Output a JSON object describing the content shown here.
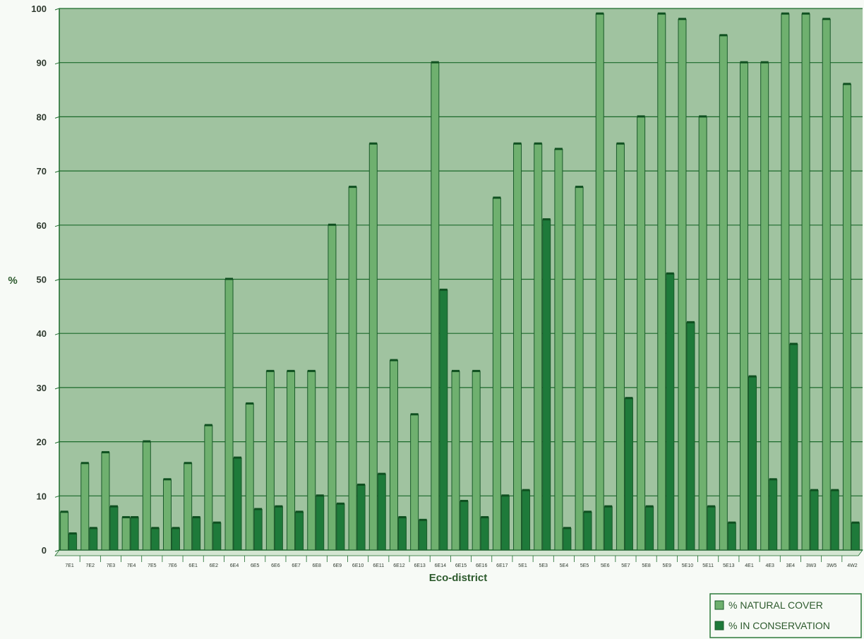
{
  "chart_data": {
    "type": "bar",
    "title": "",
    "xlabel": "Eco-district",
    "ylabel": "%",
    "ylim": [
      0,
      100
    ],
    "yticks": [
      0,
      10,
      20,
      30,
      40,
      50,
      60,
      70,
      80,
      90,
      100
    ],
    "grid": true,
    "legend_position": "bottom-right",
    "colors": {
      "plot_background": "#a0c3a0",
      "natural_cover": "#6fb06f",
      "in_conservation": "#1e7a3a",
      "grid": "#1a6a2a",
      "floor": "#d4e6d2"
    },
    "categories": [
      "7E1",
      "7E2",
      "7E3",
      "7E4",
      "7E5",
      "7E6",
      "6E1",
      "6E2",
      "6E4",
      "6E5",
      "6E6",
      "6E7",
      "6E8",
      "6E9",
      "6E10",
      "6E11",
      "6E12",
      "6E13",
      "6E14",
      "6E15",
      "6E16",
      "6E17",
      "5E1",
      "5E3",
      "5E4",
      "5E5",
      "5E6",
      "5E7",
      "5E8",
      "5E9",
      "5E10",
      "5E11",
      "5E13",
      "4E1",
      "4E3",
      "3E4",
      "3W3",
      "3W5",
      "4W2"
    ],
    "series": [
      {
        "name": "% NATURAL COVER",
        "values": [
          7,
          16,
          18,
          6,
          20,
          13,
          16,
          23,
          50,
          27,
          33,
          33,
          33,
          60,
          67,
          75,
          35,
          25,
          90,
          33,
          33,
          65,
          75,
          75,
          74,
          67,
          99,
          75,
          80,
          99,
          98,
          80,
          95,
          90,
          90,
          99,
          99,
          98,
          86
        ]
      },
      {
        "name": "% IN CONSERVATION",
        "values": [
          3,
          4,
          8,
          6,
          4,
          4,
          6,
          5,
          17,
          7.5,
          8,
          7,
          10,
          8.5,
          12,
          14,
          6,
          5.5,
          48,
          9,
          6,
          10,
          11,
          61,
          4,
          7,
          8,
          28,
          8,
          51,
          42,
          8,
          5,
          32,
          13,
          38,
          11,
          11,
          5
        ]
      }
    ]
  }
}
